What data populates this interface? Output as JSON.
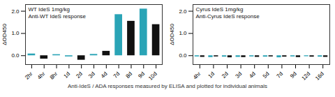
{
  "caption": "Anti-IdeS / ADA responses measured by ELISA and plotted for individual animals",
  "chart_data": [
    {
      "type": "bar",
      "title": "WT IdeS 1mg/kg",
      "subtitle": "Anti-WT IdeS response",
      "y_label": "ΔOD450",
      "categories": [
        "2hr",
        "4hr",
        "8hr",
        "1d",
        "2d",
        "3d",
        "4d",
        "7d",
        "8d",
        "9d",
        "10d"
      ],
      "values": [
        0.08,
        -0.15,
        0.05,
        -0.05,
        -0.2,
        0.06,
        0.2,
        1.85,
        1.55,
        2.1,
        1.4
      ],
      "colors": [
        "#2aa4b6",
        "#111111",
        "#2aa4b6",
        "#2aa4b6",
        "#111111",
        "#2aa4b6",
        "#111111",
        "#2aa4b6",
        "#111111",
        "#2aa4b6",
        "#111111"
      ],
      "ylim": [
        -0.4,
        2.3
      ],
      "yticks": [
        0,
        1,
        2
      ]
    },
    {
      "type": "bar",
      "title": "Cyrus IdeS 1mg/kg",
      "subtitle": "Anti-Cyrus IdeS response",
      "y_label": "ΔOD450",
      "categories": [
        "4hr",
        "1d",
        "2d",
        "3d",
        "4d",
        "5d",
        "7d",
        "9d",
        "12d",
        "16d"
      ],
      "series": [
        {
          "color": "#2aa4b6",
          "values": [
            -0.05,
            -0.08,
            -0.06,
            -0.07,
            -0.05,
            -0.06,
            -0.09,
            -0.05,
            -0.04,
            -0.06
          ]
        },
        {
          "color": "#111111",
          "values": [
            -0.07,
            -0.05,
            -0.09,
            -0.08,
            -0.07,
            -0.05,
            -0.06,
            -0.08,
            -0.06,
            -0.07
          ]
        }
      ],
      "ylim": [
        -0.4,
        2.3
      ],
      "yticks": [
        0,
        1,
        2
      ]
    }
  ]
}
